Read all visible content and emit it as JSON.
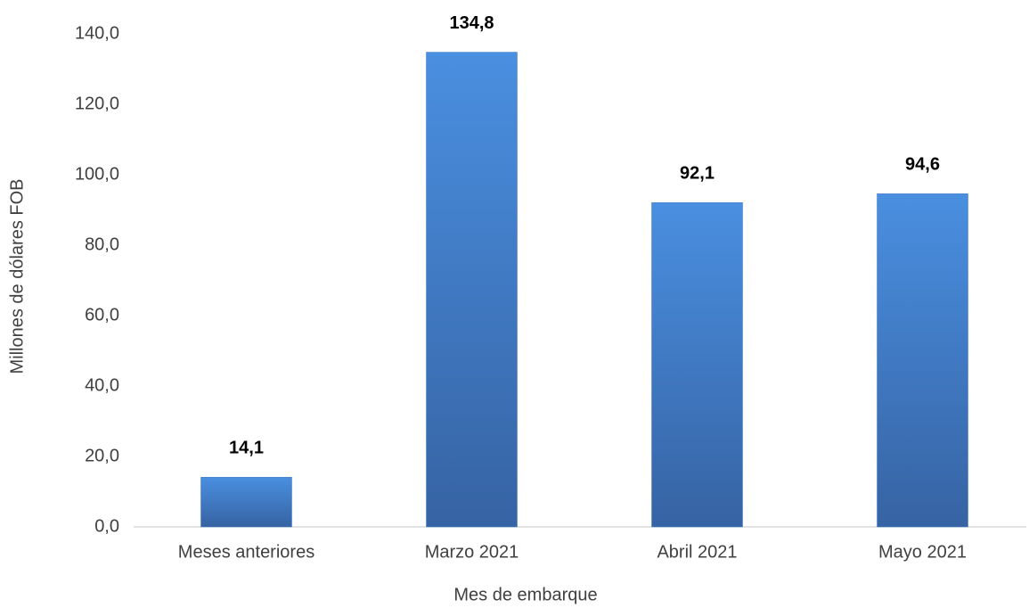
{
  "chart_data": {
    "type": "bar",
    "x_label": "Mes de embarque",
    "y_label": "Millones de dólares FOB",
    "categories": [
      "Meses anteriores",
      "Marzo 2021",
      "Abril 2021",
      "Mayo 2021"
    ],
    "values": [
      14.1,
      134.8,
      92.1,
      94.6
    ],
    "value_labels": [
      "14,1",
      "134,8",
      "92,1",
      "94,6"
    ],
    "color": "#3f78c4",
    "ylim": [
      0,
      140
    ],
    "yticks": [
      {
        "value": 0,
        "label": "0,0"
      },
      {
        "value": 20,
        "label": "20,0"
      },
      {
        "value": 40,
        "label": "40,0"
      },
      {
        "value": 60,
        "label": "60,0"
      },
      {
        "value": 80,
        "label": "80,0"
      },
      {
        "value": 100,
        "label": "100,0"
      },
      {
        "value": 120,
        "label": "120,0"
      },
      {
        "value": 140,
        "label": "140,0"
      }
    ],
    "grid": false
  }
}
